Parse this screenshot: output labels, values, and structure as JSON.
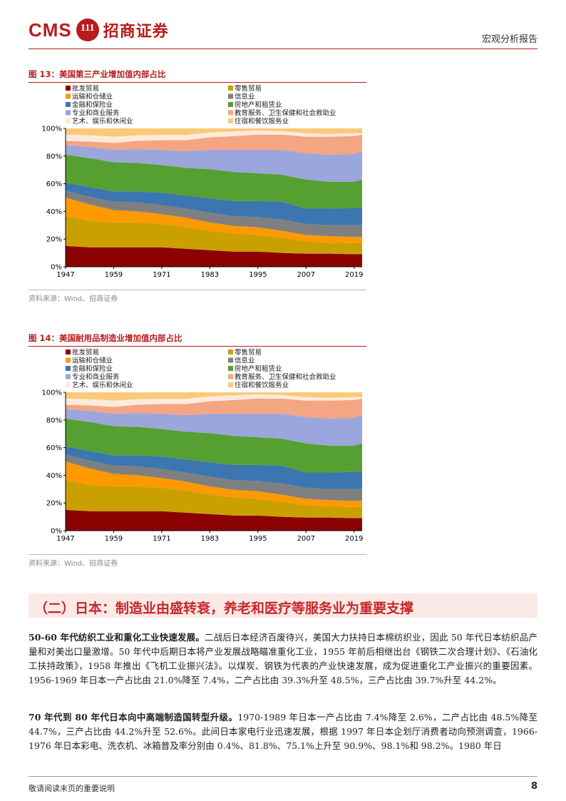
{
  "header": {
    "logo_latin": "CMS",
    "logo_badge": "111",
    "logo_chinese": "招商证券",
    "report_type": "宏观分析报告"
  },
  "figures": [
    {
      "title": "图 13：美国第三产业增加值内部占比",
      "source": "资料来源：Wind、招商证券"
    },
    {
      "title": "图 14：美国耐用品制造业增加值内部占比",
      "source": "资料来源：Wind、招商证券"
    }
  ],
  "chart_data": [
    {
      "type": "area",
      "stacked": true,
      "title": "图 13：美国第三产业增加值内部占比",
      "x": [
        1947,
        1953,
        1959,
        1965,
        1971,
        1977,
        1983,
        1989,
        1995,
        2001,
        2007,
        2013,
        2019,
        2021
      ],
      "xticks": [
        1947,
        1959,
        1971,
        1983,
        1995,
        2007,
        2019
      ],
      "yticks": [
        "0%",
        "20%",
        "40%",
        "60%",
        "80%",
        "100%"
      ],
      "ylim": [
        0,
        100
      ],
      "legend_position": "top",
      "series": [
        {
          "name": "批发贸易",
          "color": "#8b0000",
          "values": [
            15,
            14,
            14,
            14,
            14,
            13,
            12,
            11,
            11,
            10,
            9.5,
            9.5,
            9,
            9
          ]
        },
        {
          "name": "零售贸易",
          "color": "#c9a000",
          "values": [
            22,
            19,
            18,
            18,
            17,
            16,
            14,
            13,
            12,
            11,
            9,
            8,
            8,
            8
          ]
        },
        {
          "name": "运输和仓储业",
          "color": "#ff9900",
          "values": [
            13,
            12,
            9,
            8,
            7,
            6.5,
            6,
            5.5,
            5.5,
            5,
            4.5,
            4.5,
            4.5,
            4.5
          ]
        },
        {
          "name": "信息业",
          "color": "#7f7f7f",
          "values": [
            5,
            5.5,
            6,
            6.5,
            6.5,
            6.5,
            7,
            7,
            7.5,
            8,
            8,
            8,
            8.5,
            8.5
          ]
        },
        {
          "name": "金融和保险业",
          "color": "#3b76b0",
          "values": [
            6,
            7,
            7.5,
            8,
            9,
            9.5,
            10.5,
            11,
            11.5,
            13,
            11,
            12,
            12.5,
            13
          ]
        },
        {
          "name": "房地产和租赁业",
          "color": "#55a030",
          "values": [
            20,
            21,
            21,
            20.5,
            20,
            20,
            21,
            21,
            20,
            19.5,
            21,
            19.5,
            19,
            20
          ]
        },
        {
          "name": "专业和商业服务",
          "color": "#9aa6dc",
          "values": [
            7,
            8,
            9,
            10,
            11,
            12,
            14,
            16,
            17,
            18,
            19,
            19.5,
            20,
            20.5
          ]
        },
        {
          "name": "教育服务、卫生保健和社会救助业",
          "color": "#f4a582",
          "values": [
            3,
            4,
            5,
            6,
            7,
            8,
            9,
            10,
            11,
            11,
            12,
            13,
            13,
            12
          ]
        },
        {
          "name": "艺术、娱乐和休闲业",
          "color": "#fdeadc",
          "values": [
            4.5,
            4.5,
            4.5,
            4,
            3.8,
            3.8,
            3.5,
            3.3,
            3,
            2.5,
            2.5,
            2,
            2,
            1
          ]
        },
        {
          "name": "住宿和餐饮服务业",
          "color": "#fbc97a",
          "values": [
            4.5,
            5,
            6,
            5,
            4.7,
            4.7,
            3,
            2.2,
            1.5,
            2,
            3.5,
            4,
            3.5,
            3.5
          ]
        }
      ]
    },
    {
      "type": "area",
      "stacked": true,
      "title": "图 14：美国耐用品制造业增加值内部占比",
      "x": [
        1947,
        1953,
        1959,
        1965,
        1971,
        1977,
        1983,
        1989,
        1995,
        2001,
        2007,
        2013,
        2019,
        2021
      ],
      "xticks": [
        1947,
        1959,
        1971,
        1983,
        1995,
        2007,
        2019
      ],
      "yticks": [
        "0%",
        "20%",
        "40%",
        "60%",
        "80%",
        "100%"
      ],
      "ylim": [
        0,
        100
      ],
      "legend_position": "top",
      "series": [
        {
          "name": "批发贸易",
          "color": "#8b0000",
          "values": [
            15,
            14,
            14,
            14,
            14,
            13,
            12,
            11,
            11,
            10,
            9.5,
            9.5,
            9,
            9
          ]
        },
        {
          "name": "零售贸易",
          "color": "#c9a000",
          "values": [
            22,
            19,
            18,
            18,
            17,
            16,
            14,
            13,
            12,
            11,
            9,
            8,
            8,
            8
          ]
        },
        {
          "name": "运输和仓储业",
          "color": "#ff9900",
          "values": [
            13,
            12,
            9,
            8,
            7,
            6.5,
            6,
            5.5,
            5.5,
            5,
            4.5,
            4.5,
            4.5,
            4.5
          ]
        },
        {
          "name": "信息业",
          "color": "#7f7f7f",
          "values": [
            5,
            5.5,
            6,
            6.5,
            6.5,
            6.5,
            7,
            7,
            7.5,
            8,
            8,
            8,
            8.5,
            8.5
          ]
        },
        {
          "name": "金融和保险业",
          "color": "#3b76b0",
          "values": [
            6,
            7,
            7.5,
            8,
            9,
            9.5,
            10.5,
            11,
            11.5,
            13,
            11,
            12,
            12.5,
            13
          ]
        },
        {
          "name": "房地产和租赁业",
          "color": "#55a030",
          "values": [
            20,
            21,
            21,
            20.5,
            20,
            20,
            21,
            21,
            20,
            19.5,
            21,
            19.5,
            19,
            20
          ]
        },
        {
          "name": "专业和商业服务",
          "color": "#9aa6dc",
          "values": [
            7,
            8,
            9,
            10,
            11,
            12,
            14,
            16,
            17,
            18,
            19,
            19.5,
            20,
            20.5
          ]
        },
        {
          "name": "教育服务、卫生保健和社会救助业",
          "color": "#f4a582",
          "values": [
            3,
            4,
            5,
            6,
            7,
            8,
            9,
            10,
            11,
            11,
            12,
            13,
            13,
            12
          ]
        },
        {
          "name": "艺术、娱乐和休闲业",
          "color": "#fdeadc",
          "values": [
            4.5,
            4.5,
            4.5,
            4,
            3.8,
            3.8,
            3.5,
            3.3,
            3,
            2.5,
            2.5,
            2,
            2,
            1
          ]
        },
        {
          "name": "住宿和餐饮服务业",
          "color": "#fbc97a",
          "values": [
            4.5,
            5,
            6,
            5,
            4.7,
            4.7,
            3,
            2.2,
            1.5,
            2,
            3.5,
            4,
            3.5,
            3.5
          ]
        }
      ]
    }
  ],
  "section": {
    "heading": "（二）日本：制造业由盛转衰，养老和医疗等服务业为重要支撑"
  },
  "paragraphs": [
    {
      "lead": "50-60 年代纺织工业和重化工业快速发展。",
      "body": "二战后日本经济百废待兴，美国大力扶持日本棉纺织业，因此 50 年代日本纺织品产量和对美出口量激增。50 年代中后期日本将产业发展战略瞄准重化工业，1955 年前后相继出台《钢铁二次合理计划》、《石油化工扶持政策》，1958 年推出《飞机工业振兴法》。以煤炭、钢铁为代表的产业快速发展，成为促进重化工产业振兴的重要因素。1956-1969 年日本一产占比由 21.0%降至 7.4%，二产占比由 39.3%升至 48.5%，三产占比由 39.7%升至 44.2%。"
    },
    {
      "lead": "70 年代到 80 年代日本向中高端制造国转型升级。",
      "body": "1970-1989 年日本一产占比由 7.4%降至 2.6%，二产占比由 48.5%降至 44.7%，三产占比由 44.2%升至 52.6%。此间日本家电行业迅速发展，根据 1997 年日本企划厅消费者动向预测调查，1966-1976 年日本彩电、洗衣机、冰箱普及率分别由 0.4%、81.8%、75.1%上升至 90.9%、98.1%和 98.2%。1980 年日"
    }
  ],
  "footer": {
    "note": "敬请阅读末页的重要说明",
    "page_number": "8"
  }
}
